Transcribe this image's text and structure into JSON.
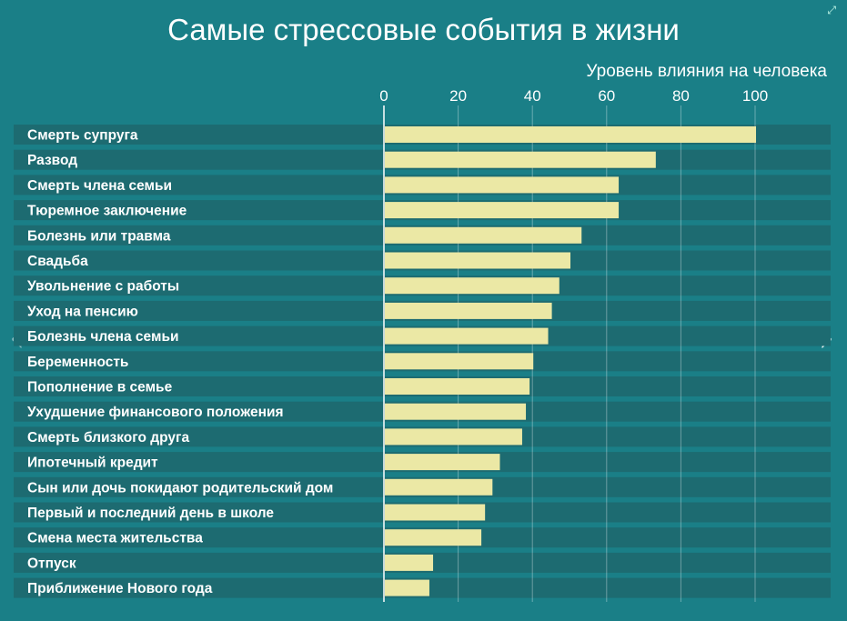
{
  "chart_data": {
    "type": "bar",
    "orientation": "horizontal",
    "title": "Самые стрессовые события в жизни",
    "xlabel": "Уровень влияния на человека",
    "xlim": [
      0,
      110
    ],
    "ticks": [
      0,
      20,
      40,
      60,
      80,
      100
    ],
    "grid": true,
    "categories": [
      "Смерть супруга",
      "Развод",
      "Смерть члена семьи",
      "Тюремное заключение",
      "Болезнь или травма",
      "Свадьба",
      "Увольнение с работы",
      "Уход на пенсию",
      "Болезнь члена семьи",
      "Беременность",
      "Пополнение в семье",
      "Ухудшение финансового положения",
      "Смерть близкого друга",
      "Ипотечный кредит",
      "Сын или дочь покидают родительский дом",
      "Первый и последний день в школе",
      "Смена места жительства",
      "Отпуск",
      "Приближение Нового года"
    ],
    "values": [
      100,
      73,
      63,
      63,
      53,
      50,
      47,
      45,
      44,
      40,
      39,
      38,
      37,
      31,
      29,
      27,
      26,
      13,
      12
    ],
    "colors": {
      "bar": "#ebe8a5",
      "band": "#1d6b71",
      "background": "#1a7f87"
    }
  },
  "nav": {
    "prev": "‹",
    "next": "›",
    "expand": "⤢"
  }
}
